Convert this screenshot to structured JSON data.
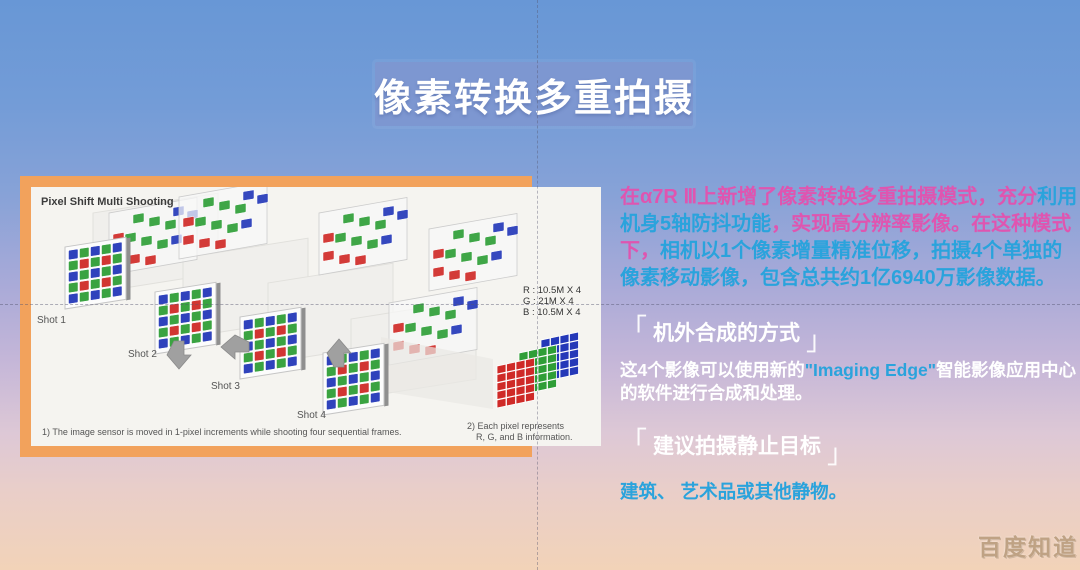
{
  "page": {
    "title_banner": "像素转换多重拍摄",
    "watermark": "百度知道"
  },
  "diagram": {
    "title": "Pixel Shift Multi Shooting",
    "shot_labels": [
      "Shot 1",
      "Shot 2",
      "Shot 3",
      "Shot 4"
    ],
    "channel_labels": [
      "R : 10.5M X 4",
      "G : 21M X 4",
      "B : 10.5M X 4"
    ],
    "footnote_1": "1) The image sensor is moved in 1-pixel increments while shooting four sequential frames.",
    "footnote_2_line1": "2) Each pixel represents",
    "footnote_2_line2": "R, G, and B information.",
    "colors": {
      "red": "#cf2a27",
      "green": "#2f9e37",
      "blue": "#2438b8"
    }
  },
  "content": {
    "bracket_open": "「",
    "bracket_close": "」",
    "colors": {
      "magenta": "#df55b0",
      "cyan": "#2aa3dc",
      "white": "#ffffff"
    },
    "paragraph_1": {
      "segments": [
        {
          "text": "在α7R Ⅲ上新增了像素转换多重拍摄模式，充分",
          "color": "magenta"
        },
        {
          "text": "利用机身5轴防抖功能",
          "color": "cyan"
        },
        {
          "text": "，实现高分辨率影像。在这种模式下，",
          "color": "magenta"
        },
        {
          "text": "相机以1个像素增量精准位移，拍摄4个单独的像素移动影像，包含总共约1亿6940万影像数据。",
          "color": "cyan"
        }
      ]
    },
    "heading_1": "机外合成的方式",
    "paragraph_2": {
      "segments": [
        {
          "text": "这4个影像可以使用新的",
          "color": "white"
        },
        {
          "text": "\"Imaging Edge\"",
          "color": "cyan"
        },
        {
          "text": "智能影像应用中心的软件进行合成和处理。",
          "color": "white"
        }
      ]
    },
    "heading_2": "建议拍摄静止目标",
    "paragraph_3": "建筑、 艺术品或其他静物。"
  }
}
